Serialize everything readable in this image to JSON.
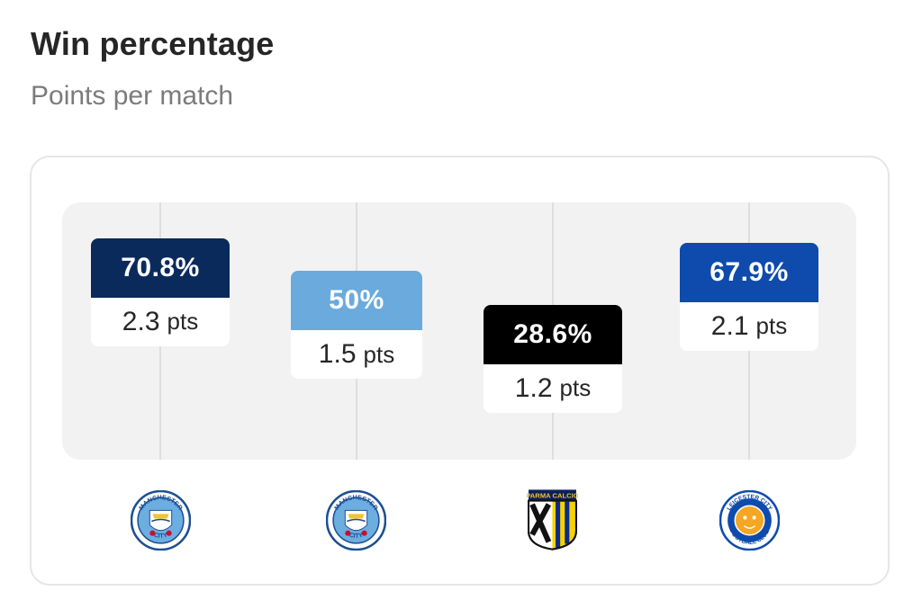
{
  "header": {
    "title": "Win percentage",
    "subtitle": "Points per match"
  },
  "chart_data": {
    "type": "bar",
    "title": "Win percentage",
    "subtitle": "Points per match",
    "categories": [
      "Manchester City",
      "Manchester City",
      "Parma Calcio",
      "Leicester City"
    ],
    "series": [
      {
        "name": "Win percentage",
        "values": [
          70.8,
          50,
          28.6,
          67.9
        ]
      },
      {
        "name": "Points per match",
        "values": [
          2.3,
          1.5,
          1.2,
          2.1
        ]
      }
    ],
    "win_labels": [
      "70.8%",
      "50%",
      "28.6%",
      "67.9%"
    ],
    "pts_labels": [
      "2.3",
      "1.5",
      "1.2",
      "2.1"
    ],
    "pts_unit": "pts",
    "colors": [
      "#0b2a5c",
      "#6aaadc",
      "#000000",
      "#0e4bac"
    ],
    "ylim": [
      0,
      100
    ],
    "grid": true
  },
  "logos": [
    {
      "name": "manchester-city-crest-icon",
      "top_text": "MANCHESTER",
      "bottom_text": "CITY"
    },
    {
      "name": "manchester-city-crest-icon",
      "top_text": "MANCHESTER",
      "bottom_text": "CITY"
    },
    {
      "name": "parma-calcio-crest-icon",
      "top_text": "PARMA CALCIO"
    },
    {
      "name": "leicester-city-crest-icon",
      "top_text": "LEICESTER CITY",
      "bottom_text": "FOOTBALL CLUB"
    }
  ]
}
